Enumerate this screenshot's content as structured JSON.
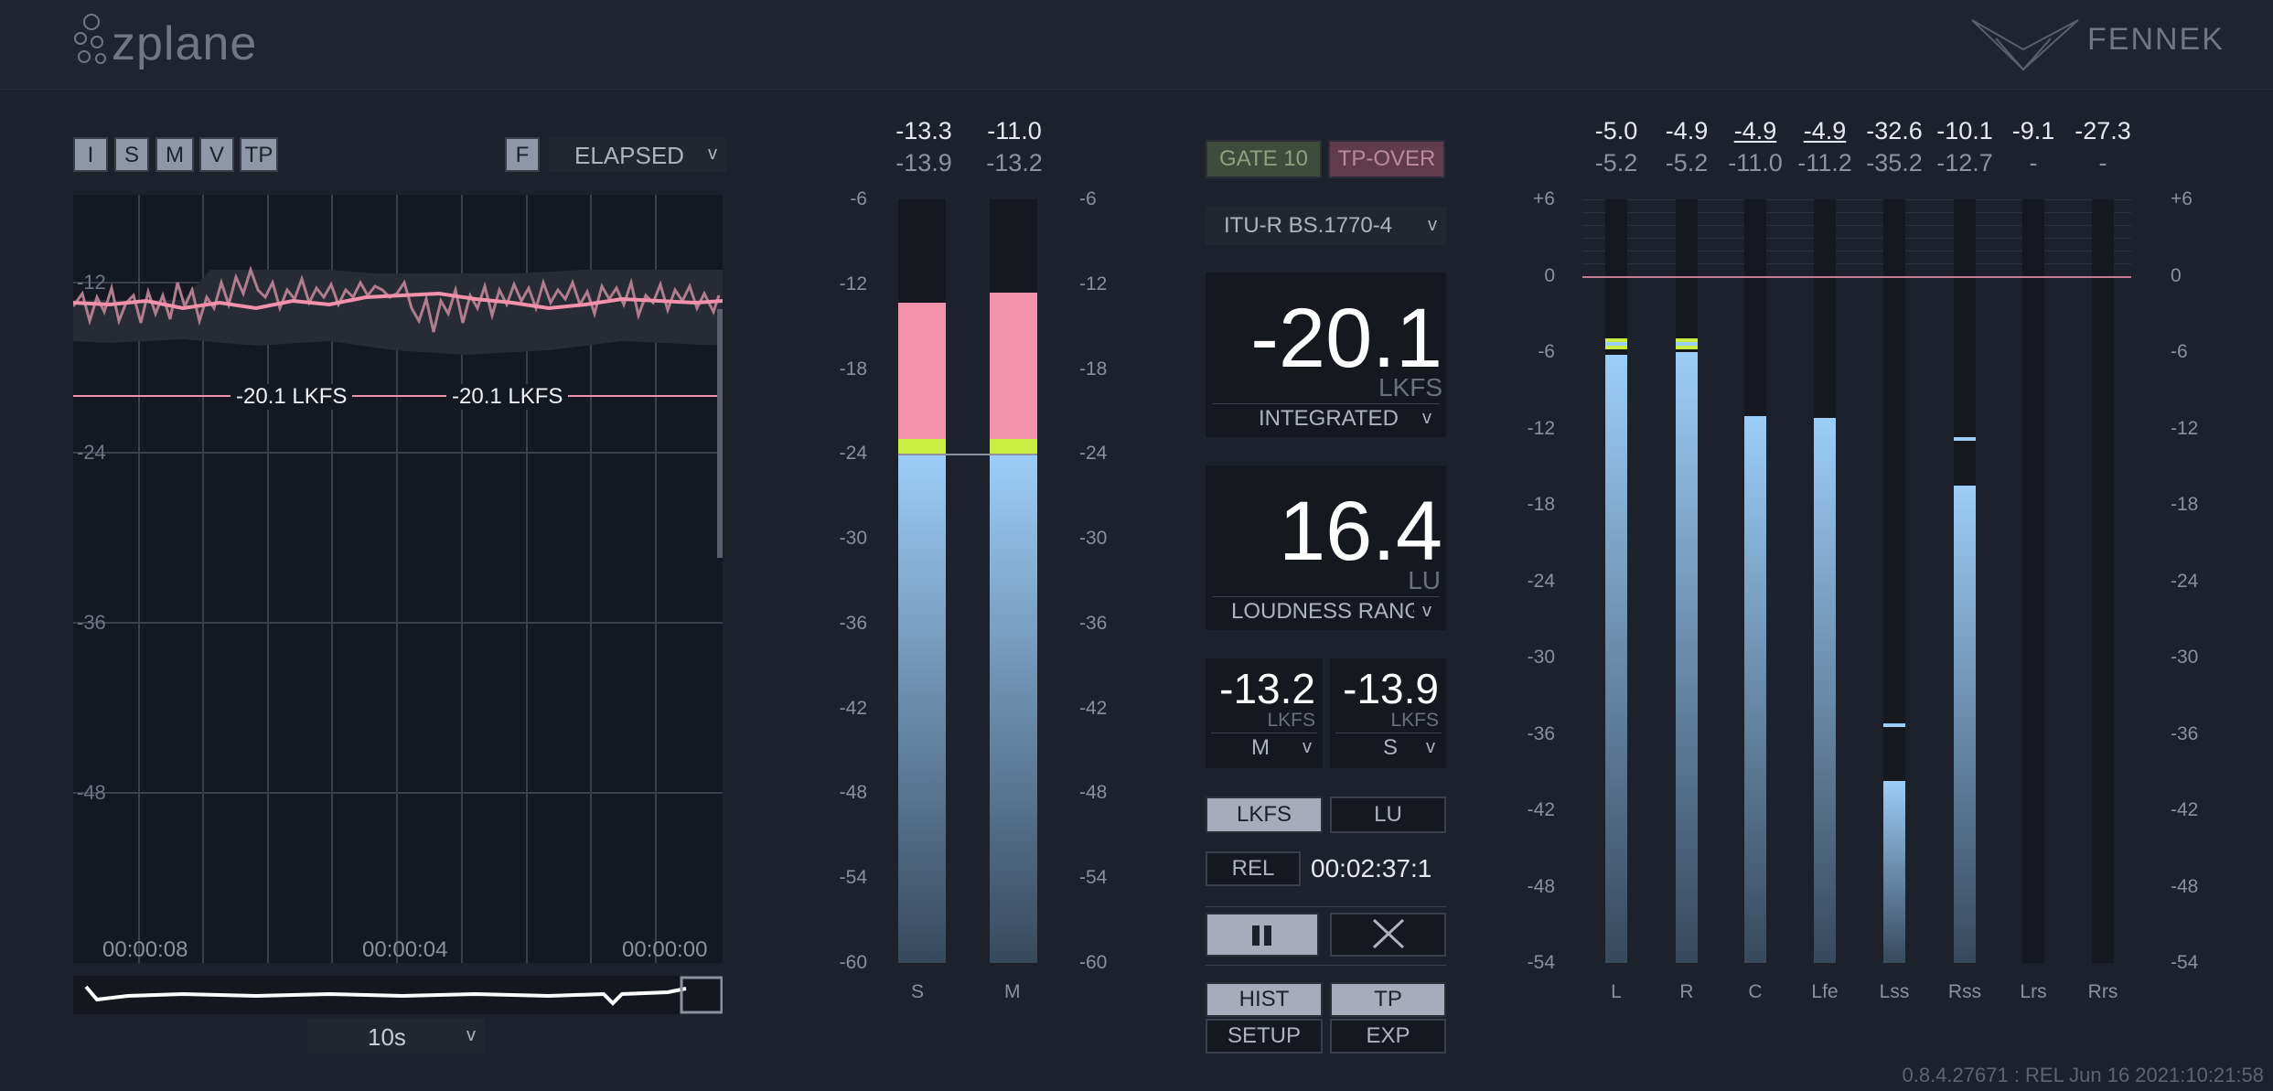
{
  "header": {
    "logo": "zplane",
    "brand": "FENNEK"
  },
  "history": {
    "mode_buttons": [
      "I",
      "S",
      "M",
      "V",
      "TP"
    ],
    "f_button": "F",
    "time_mode": "ELAPSED",
    "y_labels": [
      "-12",
      "-24",
      "-36",
      "-48"
    ],
    "target_labels": [
      "-20.1 LKFS",
      "-20.1 LKFS"
    ],
    "time_labels": [
      "00:00:08",
      "00:00:04",
      "00:00:00"
    ],
    "zoom": "10s"
  },
  "sm_meter": {
    "peaks_top": [
      "-13.3",
      "-11.0"
    ],
    "peaks_bottom": [
      "-13.9",
      "-13.2"
    ],
    "scale": [
      "-6",
      "-12",
      "-18",
      "-24",
      "-30",
      "-36",
      "-42",
      "-48",
      "-54",
      "-60"
    ],
    "channels": [
      "S",
      "M"
    ],
    "levels": [
      -13.3,
      -12.6
    ],
    "colors": {
      "pink": "#f291ab",
      "green": "#ccee44",
      "blue_top": "#9ccdf8",
      "blue_bottom": "#37495c"
    }
  },
  "center": {
    "gate_button": "GATE 10",
    "tp_over_button": "TP-OVER",
    "standard": "ITU-R BS.1770-4",
    "integrated": {
      "value": "-20.1",
      "unit": "LKFS",
      "label": "INTEGRATED"
    },
    "range": {
      "value": "16.4",
      "unit": "LU",
      "label": "LOUDNESS RANGE"
    },
    "momentary": {
      "value": "-13.2",
      "unit": "LKFS",
      "label": "M"
    },
    "short_term": {
      "value": "-13.9",
      "unit": "LKFS",
      "label": "S"
    },
    "unit_buttons": [
      "LKFS",
      "LU"
    ],
    "rel_button": "REL",
    "elapsed_time": "00:02:37:1",
    "bottom_buttons": [
      "HIST",
      "TP",
      "SETUP",
      "EXP"
    ]
  },
  "channel_meter": {
    "peaks_top": [
      "-5.0",
      "-4.9",
      "-4.9",
      "-4.9",
      "-32.6",
      "-10.1",
      "-9.1",
      "-27.3"
    ],
    "peaks_bottom": [
      "-5.2",
      "-5.2",
      "-11.0",
      "-11.2",
      "-35.2",
      "-12.7",
      "-",
      "-"
    ],
    "scale": [
      "+6",
      "0",
      "-6",
      "-12",
      "-18",
      "-24",
      "-30",
      "-36",
      "-42",
      "-48",
      "-54"
    ],
    "channels": [
      "L",
      "R",
      "C",
      "Lfe",
      "Lss",
      "Rss",
      "Lrs",
      "Rrs"
    ],
    "levels": [
      -6.2,
      -6.0,
      -11.0,
      -11.2,
      -39.7,
      -16.5,
      null,
      null
    ],
    "peak_marks": [
      -5.2,
      -5.2,
      -11.0,
      -11.2,
      -35.2,
      -12.7,
      null,
      null
    ]
  },
  "footer": "0.8.4.27671 : REL Jun 16 2021:10:21:58"
}
